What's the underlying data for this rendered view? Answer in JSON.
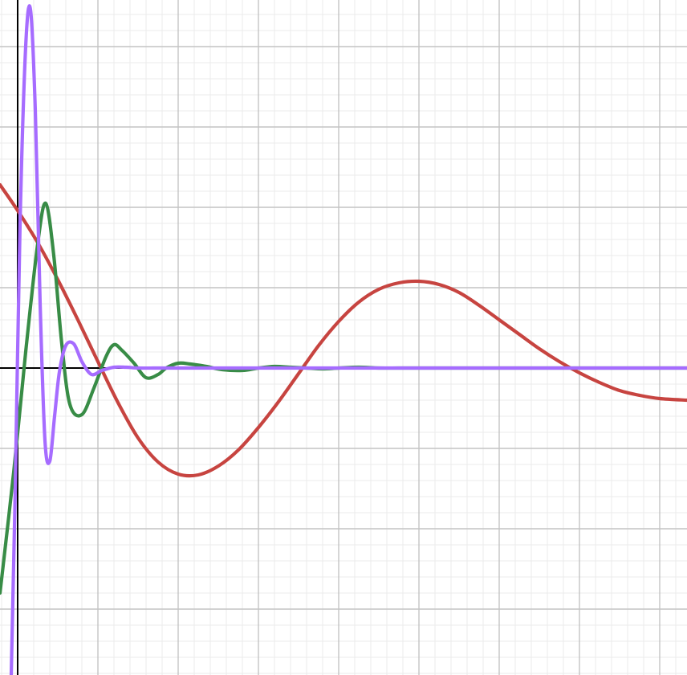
{
  "chart_data": {
    "type": "line",
    "title": "",
    "xlabel": "",
    "ylabel": "",
    "xlim": [
      -0.22,
      8.34
    ],
    "ylim": [
      -3.82,
      4.58
    ],
    "grid": {
      "on": true,
      "major_step": 1,
      "minor_step": 0.2
    },
    "legend": "none",
    "series": [
      {
        "color": "#c74440",
        "x": [
          -0.22,
          0.0,
          0.25,
          0.5,
          0.75,
          1.0,
          1.25,
          1.5,
          1.75,
          2.0,
          2.25,
          2.5,
          2.75,
          3.0,
          3.25,
          3.5,
          3.75,
          4.0,
          4.25,
          4.5,
          4.75,
          5.0,
          5.25,
          5.5,
          5.75,
          6.0,
          6.25,
          6.5,
          6.75,
          7.0,
          7.25,
          7.5,
          7.75,
          8.0,
          8.34
        ],
        "y": [
          2.28,
          1.96,
          1.56,
          1.1,
          0.6,
          0.08,
          -0.43,
          -0.87,
          -1.17,
          -1.32,
          -1.33,
          -1.22,
          -1.02,
          -0.74,
          -0.42,
          -0.07,
          0.28,
          0.58,
          0.82,
          0.98,
          1.06,
          1.08,
          1.04,
          0.94,
          0.78,
          0.6,
          0.42,
          0.24,
          0.08,
          -0.06,
          -0.18,
          -0.28,
          -0.34,
          -0.38,
          -0.4
        ]
      },
      {
        "color": "#388c46",
        "x": [
          -0.22,
          -0.05,
          0.1,
          0.25,
          0.35,
          0.45,
          0.55,
          0.65,
          0.8,
          0.95,
          1.1,
          1.2,
          1.3,
          1.45,
          1.6,
          1.75,
          1.85,
          2.0,
          2.15,
          2.35,
          2.55,
          2.8,
          3.0,
          3.2,
          3.4,
          3.6,
          3.8,
          4.0,
          4.25,
          4.5,
          4.75,
          5.0,
          5.5,
          6.0,
          6.5,
          7.0,
          7.5,
          8.0,
          8.34
        ],
        "y": [
          -2.8,
          -1.3,
          0.2,
          1.55,
          2.05,
          1.4,
          0.3,
          -0.45,
          -0.58,
          -0.25,
          0.14,
          0.29,
          0.22,
          0.06,
          -0.12,
          -0.08,
          0.0,
          0.06,
          0.05,
          0.02,
          -0.02,
          -0.03,
          0.0,
          0.02,
          0.01,
          0.0,
          -0.01,
          0.0,
          0.01,
          0.0,
          0.0,
          0.0,
          0.0,
          0.0,
          0.0,
          0.0,
          0.0,
          0.0,
          0.0
        ]
      },
      {
        "color": "#a66cff",
        "x": [
          -0.08,
          -0.03,
          0.03,
          0.1,
          0.16,
          0.22,
          0.28,
          0.34,
          0.4,
          0.46,
          0.52,
          0.6,
          0.7,
          0.8,
          0.92,
          1.05,
          1.2,
          1.35,
          1.5,
          1.7,
          1.9,
          2.2,
          2.5,
          3.0,
          3.5,
          4.0,
          5.0,
          6.0,
          7.0,
          8.0,
          8.34
        ],
        "y": [
          -3.82,
          -1.5,
          1.8,
          4.0,
          4.46,
          3.2,
          0.8,
          -0.9,
          -1.16,
          -0.6,
          -0.05,
          0.28,
          0.3,
          0.08,
          -0.08,
          -0.03,
          0.01,
          0.01,
          0.0,
          0.0,
          0.0,
          0.0,
          0.0,
          0.0,
          0.0,
          0.0,
          0.0,
          0.0,
          0.0,
          0.0,
          0.0
        ]
      }
    ]
  }
}
